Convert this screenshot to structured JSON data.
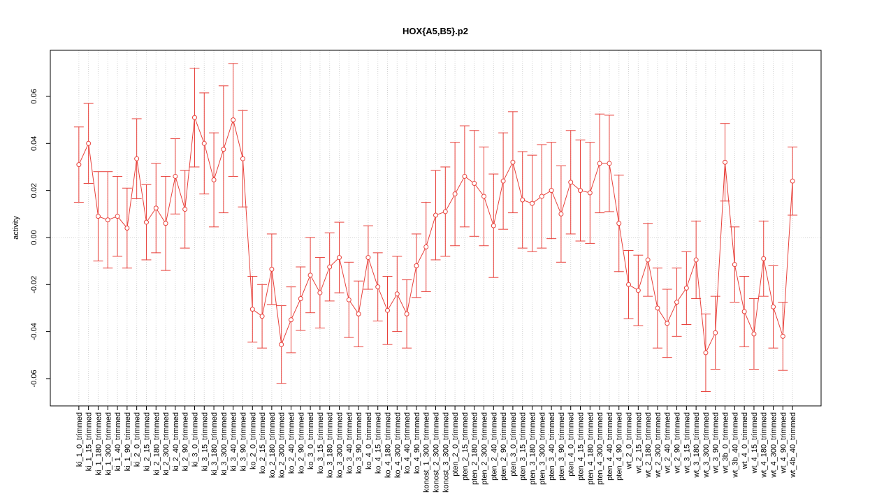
{
  "chart_data": {
    "type": "line",
    "title": "HOX{A5,B5}.p2",
    "y_label": "activity",
    "categories": [
      "ki_1_0_trimmed",
      "ki_1_15_trimmed",
      "ki_1_180_trimmed",
      "ki_1_300_trimmed",
      "ki_1_40_trimmed",
      "ki_1_90_trimmed",
      "ki_2_0_trimmed",
      "ki_2_15_trimmed",
      "ki_2_180_trimmed",
      "ki_2_300_trimmed",
      "ki_2_40_trimmed",
      "ki_2_90_trimmed",
      "ki_3_0_trimmed",
      "ki_3_15_trimmed",
      "ki_3_180_trimmed",
      "ki_3_300_trimmed",
      "ki_3_40_trimmed",
      "ki_3_90_trimmed",
      "ko_2_0_trimmed",
      "ko_2_15_trimmed",
      "ko_2_180_trimmed",
      "ko_2_300_trimmed",
      "ko_2_40_trimmed",
      "ko_2_90_trimmed",
      "ko_3_0_trimmed",
      "ko_3_15_trimmed",
      "ko_3_180_trimmed",
      "ko_3_300_trimmed",
      "ko_3_40_trimmed",
      "ko_3_90_trimmed",
      "ko_4_0_trimmed",
      "ko_4_15_trimmed",
      "ko_4_180_trimmed",
      "ko_4_300_trimmed",
      "ko_4_40_trimmed",
      "ko_4_90_trimmed",
      "konost_1_300_trimmed",
      "konost_2_300_trimmed",
      "konost_3_300_trimmed",
      "pten_2_0_trimmed",
      "pten_2_15_trimmed",
      "pten_2_180_trimmed",
      "pten_2_300_trimmed",
      "pten_2_40_trimmed",
      "pten_2_90_trimmed",
      "pten_3_0_trimmed",
      "pten_3_15_trimmed",
      "pten_3_180_trimmed",
      "pten_3_300_trimmed",
      "pten_3_40_trimmed",
      "pten_3_90_trimmed",
      "pten_4_0_trimmed",
      "pten_4_15_trimmed",
      "pten_4_180_trimmed",
      "pten_4_300_trimmed",
      "pten_4_40_trimmed",
      "pten_4_90_trimmed",
      "wt_2_0_trimmed",
      "wt_2_15_trimmed",
      "wt_2_180_trimmed",
      "wt_2_300_trimmed",
      "wt_2_40_trimmed",
      "wt_2_90_trimmed",
      "wt_3_15_trimmed",
      "wt_3_180_trimmed",
      "wt_3_300_trimmed",
      "wt_3_90_trimmed",
      "wt_3b_0_trimmed",
      "wt_3b_40_trimmed",
      "wt_4_0_trimmed",
      "wt_4_15_trimmed",
      "wt_4_180_trimmed",
      "wt_4_300_trimmed",
      "wt_4_90_trimmed",
      "wt_4b_40_trimmed"
    ],
    "values": [
      0.031,
      0.04,
      0.009,
      0.0075,
      0.009,
      0.004,
      0.0335,
      0.0065,
      0.0125,
      0.006,
      0.026,
      0.012,
      0.051,
      0.04,
      0.0245,
      0.0375,
      0.05,
      0.0335,
      -0.0305,
      -0.0335,
      -0.0135,
      -0.0455,
      -0.035,
      -0.026,
      -0.016,
      -0.0235,
      -0.0125,
      -0.0085,
      -0.0265,
      -0.0325,
      -0.0085,
      -0.021,
      -0.031,
      -0.024,
      -0.0325,
      -0.012,
      -0.004,
      0.0095,
      0.011,
      0.0185,
      0.026,
      0.023,
      0.0175,
      0.005,
      0.024,
      0.032,
      0.016,
      0.0145,
      0.0175,
      0.02,
      0.01,
      0.0235,
      0.02,
      0.019,
      0.0315,
      0.0315,
      0.006,
      -0.02,
      -0.0225,
      -0.0095,
      -0.03,
      -0.0365,
      -0.0275,
      -0.0215,
      -0.0095,
      -0.049,
      -0.0405,
      0.032,
      -0.0115,
      -0.0315,
      -0.041,
      -0.009,
      -0.0295,
      -0.042,
      0.024
    ],
    "errors": [
      0.016,
      0.017,
      0.019,
      0.0205,
      0.017,
      0.017,
      0.017,
      0.016,
      0.019,
      0.02,
      0.016,
      0.0165,
      0.021,
      0.0215,
      0.02,
      0.027,
      0.024,
      0.0205,
      0.014,
      0.0135,
      0.015,
      0.0165,
      0.014,
      0.0135,
      0.016,
      0.015,
      0.0145,
      0.015,
      0.016,
      0.014,
      0.0135,
      0.0145,
      0.0145,
      0.016,
      0.0145,
      0.0135,
      0.019,
      0.019,
      0.019,
      0.022,
      0.0215,
      0.0225,
      0.021,
      0.022,
      0.0205,
      0.0215,
      0.0205,
      0.0205,
      0.022,
      0.0205,
      0.0205,
      0.022,
      0.0215,
      0.0215,
      0.021,
      0.0205,
      0.0205,
      0.0145,
      0.015,
      0.0155,
      0.017,
      0.0145,
      0.0145,
      0.0155,
      0.0165,
      0.0165,
      0.0155,
      0.0165,
      0.016,
      0.015,
      0.015,
      0.016,
      0.0175,
      0.0145,
      0.0145
    ],
    "color": "#e8413b",
    "ylim": [
      -0.0716,
      0.0796
    ],
    "yticks": [
      -0.06,
      -0.04,
      -0.02,
      {
        "value": 0,
        "label": "0.00"
      },
      0.02,
      0.04,
      0.06
    ],
    "reference_line": 0,
    "grid": true
  }
}
